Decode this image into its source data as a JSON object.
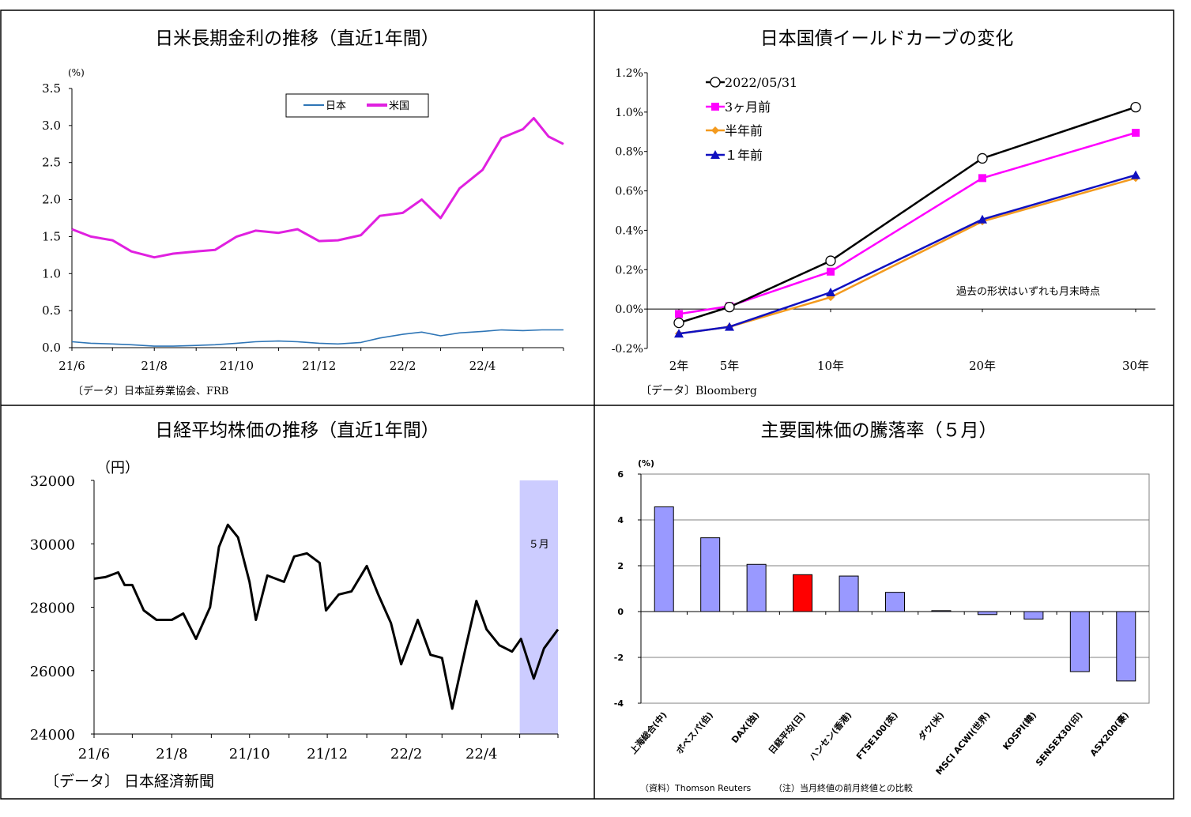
{
  "panels": {
    "top_left": {
      "title": "日米長期金利の推移（直近1年間）",
      "unit": "(%)",
      "source": "〔データ〕日本証券業協会、FRB",
      "legend": [
        "日本",
        "米国"
      ]
    },
    "top_right": {
      "title": "日本国債イールドカーブの変化",
      "source": "〔データ〕Bloomberg",
      "note": "過去の形状はいずれも月末時点"
    },
    "bottom_left": {
      "title": "日経平均株価の推移（直近1年間）",
      "unit": "（円）",
      "source": "〔データ〕 日本経済新聞",
      "highlight_label": "５月"
    },
    "bottom_right": {
      "title": "主要国株価の騰落率（５月）",
      "unit": "(%)",
      "source": "（資料）Thomson Reuters",
      "note": "（注）当月終値の前月終値との比較"
    }
  },
  "colors": {
    "japan": "#2e75b6",
    "us": "#e020e0",
    "yc_current": "#000000",
    "yc_3m": "#ff00ff",
    "yc_6m": "#f39a1e",
    "yc_1y": "#1010c0",
    "bar": "#9999ff",
    "bar_highlight": "#ff0000",
    "nikkei": "#000000",
    "highlight_band": "#ccccff"
  },
  "chart_data": [
    {
      "type": "line",
      "x_ticks": [
        "21/6",
        "21/8",
        "21/10",
        "21/12",
        "22/2",
        "22/4"
      ],
      "y_ticks": [
        "0.0",
        "0.5",
        "1.0",
        "1.5",
        "2.0",
        "2.5",
        "3.0",
        "3.5"
      ],
      "ylim": [
        0,
        3.5
      ],
      "x_range": [
        "2021-06-01",
        "2022-05-31"
      ],
      "series": [
        {
          "name": "日本",
          "points": [
            [
              "2021-06-01",
              0.08
            ],
            [
              "2021-06-15",
              0.06
            ],
            [
              "2021-07-01",
              0.05
            ],
            [
              "2021-07-15",
              0.04
            ],
            [
              "2021-08-01",
              0.02
            ],
            [
              "2021-08-15",
              0.02
            ],
            [
              "2021-09-01",
              0.03
            ],
            [
              "2021-09-15",
              0.04
            ],
            [
              "2021-10-01",
              0.06
            ],
            [
              "2021-10-15",
              0.08
            ],
            [
              "2021-11-01",
              0.09
            ],
            [
              "2021-11-15",
              0.08
            ],
            [
              "2021-12-01",
              0.06
            ],
            [
              "2021-12-15",
              0.05
            ],
            [
              "2022-01-01",
              0.07
            ],
            [
              "2022-01-15",
              0.13
            ],
            [
              "2022-02-01",
              0.18
            ],
            [
              "2022-02-15",
              0.21
            ],
            [
              "2022-03-01",
              0.16
            ],
            [
              "2022-03-15",
              0.2
            ],
            [
              "2022-04-01",
              0.22
            ],
            [
              "2022-04-15",
              0.24
            ],
            [
              "2022-05-01",
              0.23
            ],
            [
              "2022-05-15",
              0.24
            ],
            [
              "2022-05-31",
              0.24
            ]
          ]
        },
        {
          "name": "米国",
          "points": [
            [
              "2021-06-01",
              1.6
            ],
            [
              "2021-06-15",
              1.5
            ],
            [
              "2021-07-01",
              1.45
            ],
            [
              "2021-07-15",
              1.3
            ],
            [
              "2021-08-01",
              1.22
            ],
            [
              "2021-08-15",
              1.27
            ],
            [
              "2021-09-01",
              1.3
            ],
            [
              "2021-09-15",
              1.32
            ],
            [
              "2021-10-01",
              1.5
            ],
            [
              "2021-10-15",
              1.58
            ],
            [
              "2021-11-01",
              1.55
            ],
            [
              "2021-11-15",
              1.6
            ],
            [
              "2021-12-01",
              1.44
            ],
            [
              "2021-12-15",
              1.45
            ],
            [
              "2022-01-01",
              1.52
            ],
            [
              "2022-01-15",
              1.78
            ],
            [
              "2022-02-01",
              1.82
            ],
            [
              "2022-02-15",
              2.0
            ],
            [
              "2022-03-01",
              1.75
            ],
            [
              "2022-03-15",
              2.15
            ],
            [
              "2022-04-01",
              2.4
            ],
            [
              "2022-04-15",
              2.83
            ],
            [
              "2022-05-01",
              2.95
            ],
            [
              "2022-05-09",
              3.1
            ],
            [
              "2022-05-20",
              2.85
            ],
            [
              "2022-05-31",
              2.75
            ]
          ]
        }
      ]
    },
    {
      "type": "line",
      "categories": [
        "2年",
        "5年",
        "10年",
        "20年",
        "30年"
      ],
      "y_ticks": [
        "-0.2%",
        "0.0%",
        "0.2%",
        "0.4%",
        "0.6%",
        "0.8%",
        "1.0%",
        "1.2%"
      ],
      "ylim": [
        -0.2,
        1.2
      ],
      "series": [
        {
          "name": "2022/05/31",
          "values": [
            -0.07,
            0.01,
            0.245,
            0.765,
            1.025
          ]
        },
        {
          "name": "3ヶ月前",
          "values": [
            -0.025,
            0.015,
            0.19,
            0.665,
            0.895
          ]
        },
        {
          "name": "半年前",
          "values": [
            -0.125,
            -0.09,
            0.06,
            0.445,
            0.665
          ]
        },
        {
          "name": "１年前",
          "values": [
            -0.125,
            -0.09,
            0.085,
            0.455,
            0.68
          ]
        }
      ]
    },
    {
      "type": "line",
      "x_ticks": [
        "21/6",
        "21/8",
        "21/10",
        "21/12",
        "22/2",
        "22/4"
      ],
      "y_ticks": [
        "24000",
        "26000",
        "28000",
        "30000",
        "32000"
      ],
      "ylim": [
        24000,
        32000
      ],
      "x_range": [
        "2021-06-01",
        "2022-05-31"
      ],
      "highlight_range": [
        "2022-05-01",
        "2022-05-31"
      ],
      "series": [
        {
          "name": "日経平均",
          "points": [
            [
              "2021-06-01",
              28900
            ],
            [
              "2021-06-10",
              28950
            ],
            [
              "2021-06-20",
              29100
            ],
            [
              "2021-06-25",
              28700
            ],
            [
              "2021-07-01",
              28700
            ],
            [
              "2021-07-10",
              27900
            ],
            [
              "2021-07-20",
              27600
            ],
            [
              "2021-08-01",
              27600
            ],
            [
              "2021-08-10",
              27800
            ],
            [
              "2021-08-20",
              27000
            ],
            [
              "2021-08-31",
              28000
            ],
            [
              "2021-09-07",
              29900
            ],
            [
              "2021-09-14",
              30600
            ],
            [
              "2021-09-22",
              30200
            ],
            [
              "2021-10-01",
              28800
            ],
            [
              "2021-10-06",
              27600
            ],
            [
              "2021-10-15",
              29000
            ],
            [
              "2021-10-28",
              28800
            ],
            [
              "2021-11-05",
              29600
            ],
            [
              "2021-11-15",
              29700
            ],
            [
              "2021-11-25",
              29400
            ],
            [
              "2021-11-30",
              27900
            ],
            [
              "2021-12-10",
              28400
            ],
            [
              "2021-12-20",
              28500
            ],
            [
              "2022-01-01",
              29300
            ],
            [
              "2022-01-10",
              28400
            ],
            [
              "2022-01-20",
              27500
            ],
            [
              "2022-01-28",
              26200
            ],
            [
              "2022-02-10",
              27600
            ],
            [
              "2022-02-20",
              26500
            ],
            [
              "2022-03-01",
              26400
            ],
            [
              "2022-03-09",
              24800
            ],
            [
              "2022-03-20",
              26800
            ],
            [
              "2022-03-28",
              28200
            ],
            [
              "2022-04-05",
              27300
            ],
            [
              "2022-04-15",
              26800
            ],
            [
              "2022-04-25",
              26600
            ],
            [
              "2022-05-02",
              27000
            ],
            [
              "2022-05-12",
              25750
            ],
            [
              "2022-05-20",
              26700
            ],
            [
              "2022-05-31",
              27300
            ]
          ]
        }
      ]
    },
    {
      "type": "bar",
      "categories": [
        "上海総合(中)",
        "ボベスパ(伯)",
        "DAX(独)",
        "日経平均(日)",
        "ハンセン(香港)",
        "FTSE100(英)",
        "ダウ(米)",
        "MSCI ACWI(世界)",
        "KOSPI(韓)",
        "SENSEX30(印)",
        "ASX200(豪)"
      ],
      "values": [
        4.57,
        3.22,
        2.06,
        1.61,
        1.55,
        0.84,
        0.04,
        -0.13,
        -0.33,
        -2.62,
        -3.03
      ],
      "highlight_index": 3,
      "y_ticks": [
        "-4",
        "-2",
        "0",
        "2",
        "4",
        "6"
      ],
      "ylim": [
        -4,
        6
      ]
    }
  ]
}
